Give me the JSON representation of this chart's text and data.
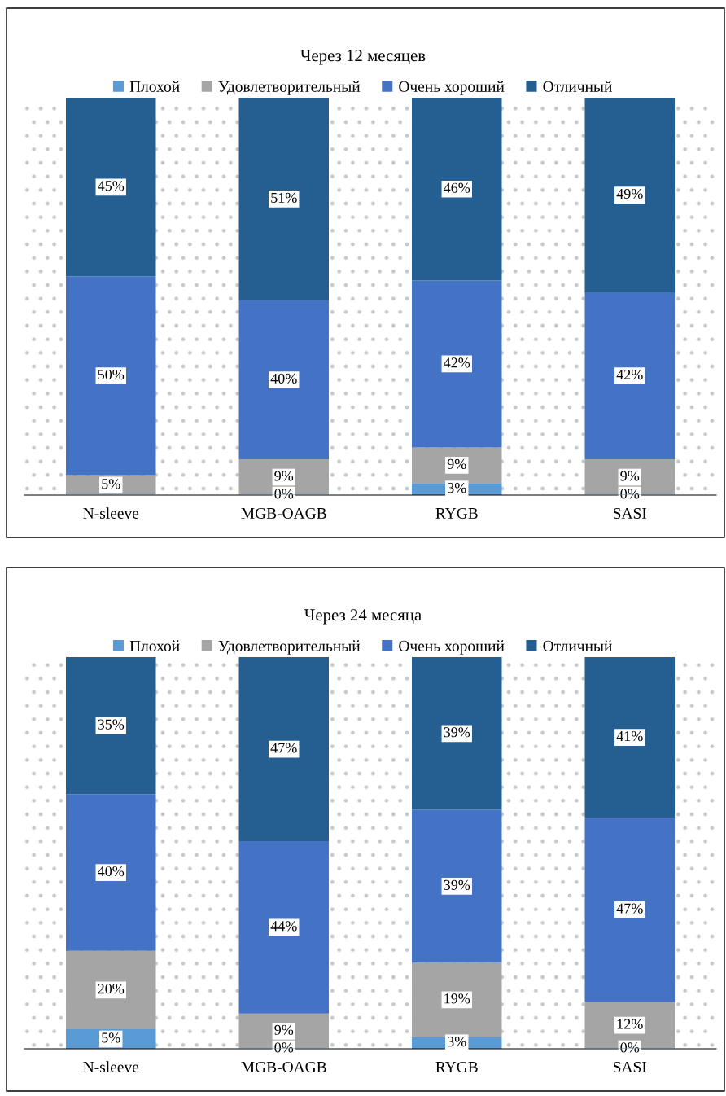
{
  "chart_data": [
    {
      "type": "bar",
      "title": "Через 12 месяцев",
      "stacked": true,
      "legend": "top",
      "categories": [
        "N-sleeve",
        "MGB-OAGB",
        "RYGB",
        "SASI"
      ],
      "series": [
        {
          "name": "Плохой",
          "color": "#5b9bd5",
          "values": [
            0,
            0,
            3,
            0
          ],
          "value_labels": [
            null,
            "0%",
            "3%",
            "0%"
          ]
        },
        {
          "name": "Удовлетворительный",
          "color": "#a5a5a5",
          "values": [
            5,
            9,
            9,
            9
          ],
          "value_labels": [
            "5%",
            "9%",
            "9%",
            "9%"
          ]
        },
        {
          "name": "Очень хороший",
          "color": "#4472c4",
          "values": [
            50,
            40,
            42,
            42
          ],
          "value_labels": [
            "50%",
            "40%",
            "42%",
            "42%"
          ]
        },
        {
          "name": "Отличный",
          "color": "#255e91",
          "values": [
            45,
            51,
            46,
            49
          ],
          "value_labels": [
            "45%",
            "51%",
            "46%",
            "49%"
          ]
        }
      ]
    },
    {
      "type": "bar",
      "title": "Через 24 месяца",
      "stacked": true,
      "legend": "top",
      "categories": [
        "N-sleeve",
        "MGB-OAGB",
        "RYGB",
        "SASI"
      ],
      "series": [
        {
          "name": "Плохой",
          "color": "#5b9bd5",
          "values": [
            5,
            0,
            3,
            0
          ],
          "value_labels": [
            "5%",
            "0%",
            "3%",
            "0%"
          ]
        },
        {
          "name": "Удовлетворительный",
          "color": "#a5a5a5",
          "values": [
            20,
            9,
            19,
            12
          ],
          "value_labels": [
            "20%",
            "9%",
            "19%",
            "12%"
          ]
        },
        {
          "name": "Очень хороший",
          "color": "#4472c4",
          "values": [
            40,
            44,
            39,
            47
          ],
          "value_labels": [
            "40%",
            "44%",
            "39%",
            "47%"
          ]
        },
        {
          "name": "Отличный",
          "color": "#255e91",
          "values": [
            35,
            47,
            39,
            41
          ],
          "value_labels": [
            "35%",
            "47%",
            "39%",
            "41%"
          ]
        }
      ]
    }
  ]
}
